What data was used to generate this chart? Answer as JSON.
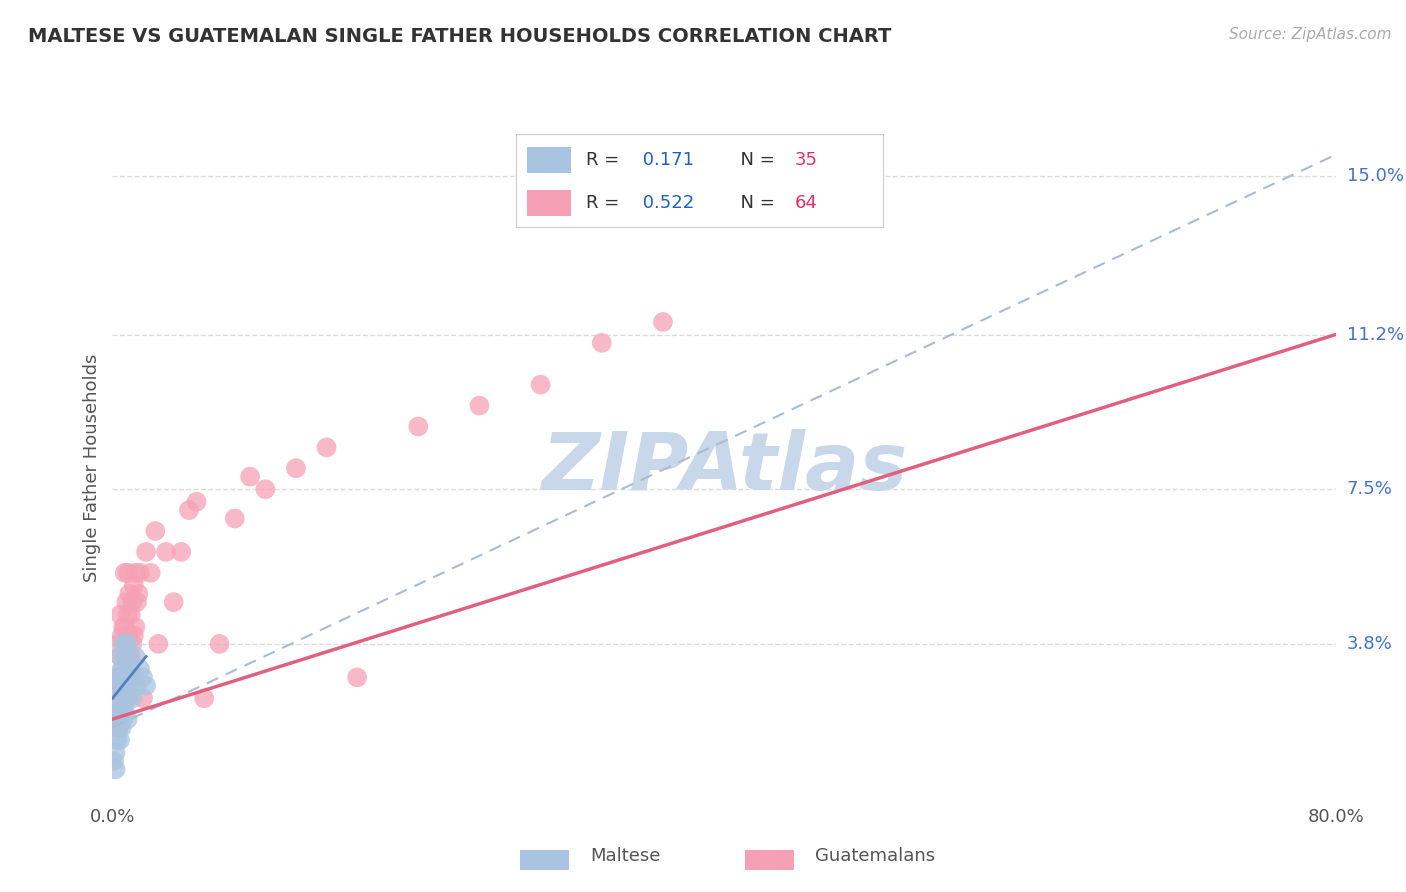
{
  "title": "MALTESE VS GUATEMALAN SINGLE FATHER HOUSEHOLDS CORRELATION CHART",
  "source": "Source: ZipAtlas.com",
  "ylabel": "Single Father Households",
  "xlim": [
    0.0,
    0.8
  ],
  "ylim": [
    0.0,
    0.16
  ],
  "xticks": [
    0.0,
    0.8
  ],
  "xticklabels": [
    "0.0%",
    "80.0%"
  ],
  "ytick_labels_right": [
    "3.8%",
    "7.5%",
    "11.2%",
    "15.0%"
  ],
  "ytick_values_right": [
    0.038,
    0.075,
    0.112,
    0.15
  ],
  "maltese_R": 0.171,
  "maltese_N": 35,
  "guatemalan_R": 0.522,
  "guatemalan_N": 64,
  "maltese_color": "#a8c4e0",
  "guatemalan_color": "#f5a0b5",
  "maltese_line_color": "#5580c0",
  "guatemalan_line_color": "#e06080",
  "dashed_line_color": "#aabbd0",
  "watermark": "ZIPAtlas",
  "watermark_color": "#c8d8ea",
  "background_color": "#ffffff",
  "grid_color": "#cccccc",
  "legend_box_color": "#f0f4ff",
  "legend_R_color": "#2060c0",
  "legend_N_color": "#e03060",
  "maltese_x": [
    0.001,
    0.002,
    0.002,
    0.003,
    0.003,
    0.003,
    0.004,
    0.004,
    0.004,
    0.005,
    0.005,
    0.005,
    0.005,
    0.006,
    0.006,
    0.006,
    0.007,
    0.007,
    0.007,
    0.008,
    0.008,
    0.009,
    0.009,
    0.01,
    0.01,
    0.01,
    0.011,
    0.012,
    0.013,
    0.014,
    0.015,
    0.016,
    0.018,
    0.02,
    0.022
  ],
  "maltese_y": [
    0.01,
    0.008,
    0.012,
    0.015,
    0.02,
    0.025,
    0.018,
    0.022,
    0.03,
    0.015,
    0.022,
    0.028,
    0.035,
    0.018,
    0.025,
    0.032,
    0.02,
    0.028,
    0.038,
    0.022,
    0.03,
    0.025,
    0.035,
    0.02,
    0.03,
    0.038,
    0.028,
    0.032,
    0.025,
    0.03,
    0.035,
    0.028,
    0.032,
    0.03,
    0.028
  ],
  "guatemalan_x": [
    0.002,
    0.003,
    0.003,
    0.004,
    0.004,
    0.004,
    0.005,
    0.005,
    0.005,
    0.005,
    0.006,
    0.006,
    0.006,
    0.007,
    0.007,
    0.007,
    0.008,
    0.008,
    0.008,
    0.008,
    0.009,
    0.009,
    0.009,
    0.01,
    0.01,
    0.01,
    0.01,
    0.011,
    0.011,
    0.011,
    0.012,
    0.012,
    0.013,
    0.013,
    0.014,
    0.014,
    0.015,
    0.015,
    0.016,
    0.017,
    0.018,
    0.02,
    0.022,
    0.025,
    0.028,
    0.03,
    0.035,
    0.04,
    0.045,
    0.05,
    0.055,
    0.06,
    0.07,
    0.08,
    0.09,
    0.1,
    0.12,
    0.14,
    0.16,
    0.2,
    0.24,
    0.28,
    0.32,
    0.36
  ],
  "guatemalan_y": [
    0.02,
    0.022,
    0.03,
    0.018,
    0.028,
    0.038,
    0.02,
    0.028,
    0.035,
    0.045,
    0.025,
    0.03,
    0.04,
    0.022,
    0.032,
    0.042,
    0.025,
    0.035,
    0.042,
    0.055,
    0.028,
    0.038,
    0.048,
    0.025,
    0.035,
    0.045,
    0.055,
    0.03,
    0.04,
    0.05,
    0.035,
    0.045,
    0.038,
    0.048,
    0.04,
    0.052,
    0.042,
    0.055,
    0.048,
    0.05,
    0.055,
    0.025,
    0.06,
    0.055,
    0.065,
    0.038,
    0.06,
    0.048,
    0.06,
    0.07,
    0.072,
    0.025,
    0.038,
    0.068,
    0.078,
    0.075,
    0.08,
    0.085,
    0.03,
    0.09,
    0.095,
    0.1,
    0.11,
    0.115
  ],
  "maltese_line_x": [
    0.0,
    0.022
  ],
  "maltese_line_y": [
    0.025,
    0.035
  ],
  "guatemalan_line_x0": 0.0,
  "guatemalan_line_y0": 0.02,
  "guatemalan_line_x1": 0.8,
  "guatemalan_line_y1": 0.112,
  "dashed_line_x0": 0.0,
  "dashed_line_y0": 0.018,
  "dashed_line_x1": 0.8,
  "dashed_line_y1": 0.155
}
